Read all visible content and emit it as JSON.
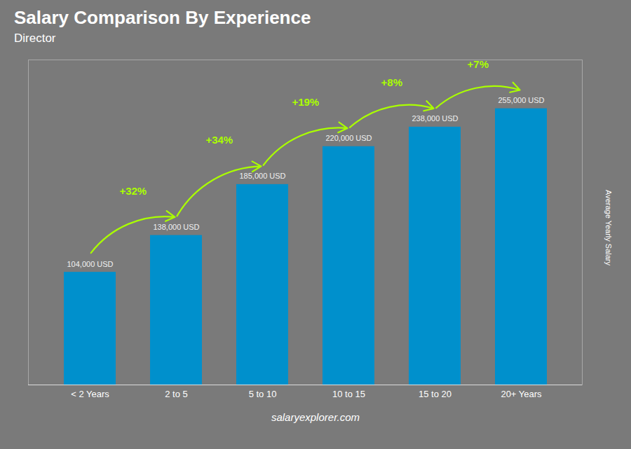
{
  "chart_data": {
    "type": "bar",
    "title": "Salary Comparison By Experience",
    "subtitle": "Director",
    "categories": [
      "< 2 Years",
      "2 to 5",
      "5 to 10",
      "10 to 15",
      "15 to 20",
      "20+ Years"
    ],
    "values": [
      104000,
      138000,
      185000,
      220000,
      238000,
      255000
    ],
    "value_labels": [
      "104,000 USD",
      "138,000 USD",
      "185,000 USD",
      "220,000 USD",
      "238,000 USD",
      "255,000 USD"
    ],
    "data_labels": true,
    "color": "#0090cc",
    "ylim": [
      0,
      300000
    ],
    "ylabel": "Average Yearly Salary",
    "tick_labels": "x",
    "annotations": [
      {
        "text": "+32%",
        "color": "#aaff00"
      },
      {
        "text": "+34%",
        "color": "#aaff00"
      },
      {
        "text": "+19%",
        "color": "#aaff00"
      },
      {
        "text": "+8%",
        "color": "#aaff00"
      },
      {
        "text": "+7%",
        "color": "#aaff00"
      }
    ],
    "caption": "salaryexplorer.com"
  }
}
